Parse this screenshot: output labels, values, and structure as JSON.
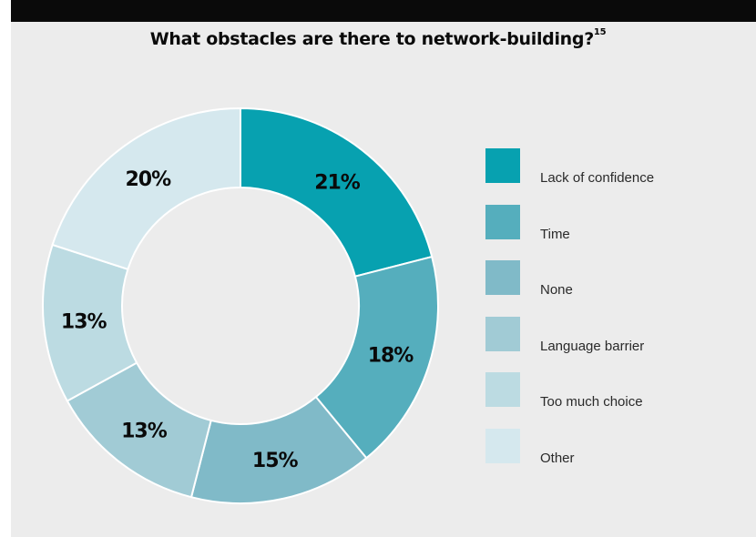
{
  "title": "What obstacles are there to network-building?",
  "title_footnote": "15",
  "colors": {
    "background": "#ececec",
    "topbar": "#0a0a0a",
    "text": "#0a0a0a"
  },
  "chart_data": {
    "type": "pie",
    "variant": "donut",
    "title": "What obstacles are there to network-building?",
    "categories": [
      "Lack of confidence",
      "Time",
      "None",
      "Language barrier",
      "Too much choice",
      "Other"
    ],
    "values": [
      21,
      18,
      15,
      13,
      13,
      20
    ],
    "labels": [
      "21%",
      "18%",
      "15%",
      "13%",
      "13%",
      "20%"
    ],
    "colors": [
      "#07a1b0",
      "#55aebd",
      "#80bac8",
      "#a1cbd5",
      "#bcdbe2",
      "#d5e8ee"
    ],
    "legend_position": "right"
  }
}
